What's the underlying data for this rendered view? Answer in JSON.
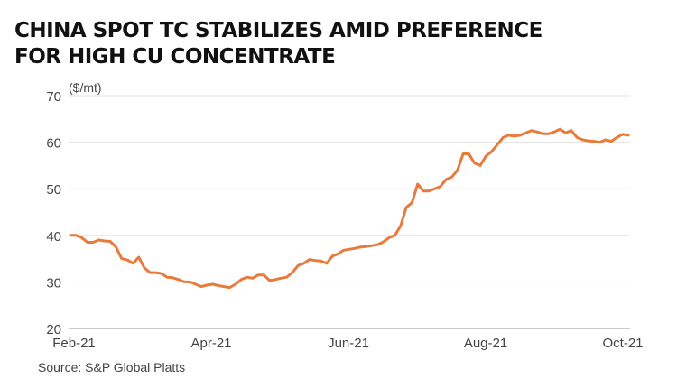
{
  "title_lines": [
    "CHINA SPOT TC STABILIZES AMID PREFERENCE",
    "FOR HIGH CU CONCENTRATE"
  ],
  "source": "Source: S&P Global Platts",
  "colors": {
    "line": "#E87A3C",
    "grid": "#e3e3e3",
    "axis": "#aaaaaa",
    "text": "#444444"
  },
  "chart_data": {
    "type": "line",
    "title": "CHINA SPOT TC STABILIZES AMID PREFERENCE FOR HIGH CU CONCENTRATE",
    "ylabel": "($/mt)",
    "xlabel": "",
    "ylim": [
      20,
      70
    ],
    "yticks": [
      20,
      30,
      40,
      50,
      60,
      70
    ],
    "xticks": [
      "Feb-21",
      "Apr-21",
      "Jun-21",
      "Aug-21",
      "Oct-21"
    ],
    "grid": true,
    "x_unit": "week",
    "series": [
      {
        "values": [
          40,
          40,
          39.5,
          38.5,
          38.5,
          39,
          38.8,
          38.7,
          37.5,
          35,
          34.7,
          34,
          35.3,
          33,
          32,
          32,
          31.8,
          31,
          30.9,
          30.5,
          30,
          30,
          29.5,
          29,
          29.3,
          29.5,
          29.2,
          29,
          28.8,
          29.5,
          30.5,
          31,
          30.8,
          31.5,
          31.5,
          30.3,
          30.5,
          30.8,
          31,
          32,
          33.5,
          34,
          34.8,
          34.6,
          34.5,
          34,
          35.5,
          36,
          36.8,
          37,
          37.2,
          37.5,
          37.6,
          37.8,
          38,
          38.6,
          39.5,
          40,
          42,
          46,
          47,
          51,
          49.5,
          49.5,
          50,
          50.5,
          52,
          52.5,
          54,
          57.5,
          57.5,
          55.5,
          55,
          57,
          58,
          59.5,
          61,
          61.5,
          61.3,
          61.5,
          62,
          62.5,
          62.2,
          61.8,
          61.8,
          62.2,
          62.8,
          62,
          62.5,
          61,
          60.5,
          60.3,
          60.2,
          60,
          60.5,
          60.2,
          61,
          61.7,
          61.5
        ]
      }
    ]
  }
}
